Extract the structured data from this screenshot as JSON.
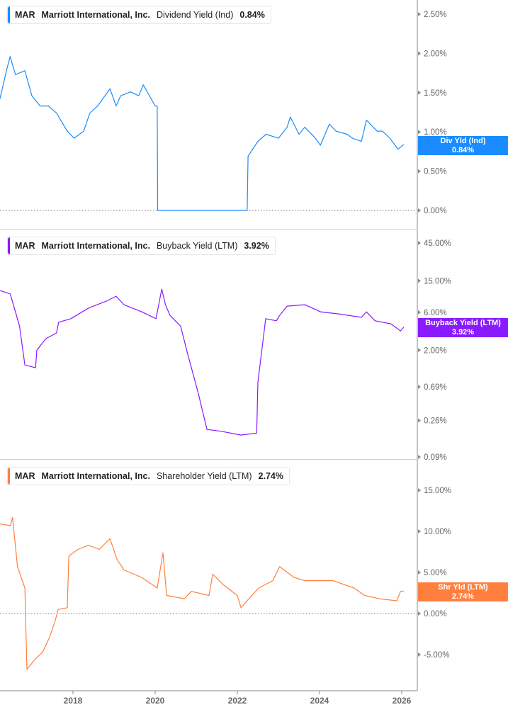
{
  "colors": {
    "div": "#1a8cff",
    "buyback": "#8a1aff",
    "shareholder": "#ff7f3f",
    "axis": "#b0b0b0",
    "text": "#666666"
  },
  "chart_data": [
    {
      "type": "line",
      "ticker": "MAR",
      "company": "Marriott International, Inc.",
      "metric": "Dividend Yield (Ind)",
      "current": "0.84%",
      "tag_label": "Div Yld (Ind)",
      "scale": "linear",
      "ylim": [
        0,
        2.6
      ],
      "yticks": [
        "2.50%",
        "2.00%",
        "1.50%",
        "1.00%",
        "0.50%",
        "0.00%"
      ],
      "ytick_values": [
        2.5,
        2.0,
        1.5,
        1.0,
        0.5,
        0.0
      ],
      "x": [
        2016.22,
        2016.4,
        2016.47,
        2016.6,
        2016.83,
        2017.0,
        2017.2,
        2017.4,
        2017.6,
        2017.86,
        2018.03,
        2018.26,
        2018.41,
        2018.6,
        2018.9,
        2019.05,
        2019.16,
        2019.4,
        2019.6,
        2019.71,
        2020.0,
        2020.05,
        2020.06,
        2022.24,
        2022.26,
        2022.5,
        2022.7,
        2023.0,
        2023.21,
        2023.29,
        2023.5,
        2023.64,
        2023.9,
        2024.02,
        2024.24,
        2024.4,
        2024.67,
        2024.8,
        2025.02,
        2025.14,
        2025.4,
        2025.53,
        2025.71,
        2025.91,
        2026.05
      ],
      "values": [
        1.42,
        1.82,
        1.96,
        1.73,
        1.78,
        1.46,
        1.33,
        1.33,
        1.24,
        1.01,
        0.92,
        1.01,
        1.24,
        1.33,
        1.55,
        1.33,
        1.46,
        1.51,
        1.46,
        1.6,
        1.33,
        1.33,
        0,
        0,
        0.69,
        0.88,
        0.97,
        0.92,
        1.06,
        1.19,
        0.97,
        1.06,
        0.92,
        0.83,
        1.1,
        1.01,
        0.97,
        0.92,
        0.88,
        1.15,
        1.01,
        1.01,
        0.92,
        0.78,
        0.84
      ]
    },
    {
      "type": "line",
      "ticker": "MAR",
      "company": "Marriott International, Inc.",
      "metric": "Buyback Yield (LTM)",
      "current": "3.92%",
      "tag_label": "Buyback Yield (LTM)",
      "scale": "log",
      "ylim": [
        0.09,
        45
      ],
      "yticks": [
        "45.00%",
        "15.00%",
        "6.00%",
        "2.00%",
        "0.69%",
        "0.26%",
        "0.09%"
      ],
      "ytick_values": [
        45,
        15,
        6,
        2,
        0.69,
        0.26,
        0.09
      ],
      "x": [
        2016.22,
        2016.47,
        2016.6,
        2016.7,
        2016.83,
        2017.09,
        2017.12,
        2017.34,
        2017.6,
        2017.65,
        2017.95,
        2018.38,
        2018.81,
        2019.05,
        2019.24,
        2019.67,
        2020.02,
        2020.16,
        2020.25,
        2020.36,
        2020.62,
        2020.79,
        2021.05,
        2021.26,
        2021.6,
        2022.09,
        2022.47,
        2022.5,
        2022.69,
        2022.95,
        2023.03,
        2023.21,
        2023.64,
        2024.02,
        2024.5,
        2025.02,
        2025.14,
        2025.35,
        2025.74,
        2025.97,
        2026.05
      ],
      "values": [
        11.3,
        10.3,
        6.1,
        4.0,
        1.3,
        1.2,
        2.0,
        2.8,
        3.3,
        4.5,
        5.0,
        6.8,
        8.3,
        9.6,
        7.5,
        6.1,
        5.0,
        11.8,
        7.5,
        5.5,
        4.0,
        1.8,
        0.57,
        0.2,
        0.19,
        0.17,
        0.18,
        0.79,
        5.0,
        4.7,
        5.5,
        7.2,
        7.5,
        6.1,
        5.7,
        5.2,
        6.1,
        4.7,
        4.3,
        3.5,
        3.92
      ]
    },
    {
      "type": "line",
      "ticker": "MAR",
      "company": "Marriott International, Inc.",
      "metric": "Shareholder Yield (LTM)",
      "current": "2.74%",
      "tag_label": "Shr Yld (LTM)",
      "scale": "linear",
      "ylim": [
        -7.5,
        16.5
      ],
      "yticks": [
        "15.00%",
        "10.00%",
        "5.00%",
        "0.00%",
        "-5.00%"
      ],
      "ytick_values": [
        15,
        10,
        5,
        0,
        -5
      ],
      "x": [
        2016.22,
        2016.48,
        2016.53,
        2016.65,
        2016.83,
        2016.88,
        2017.09,
        2017.26,
        2017.43,
        2017.57,
        2017.64,
        2017.86,
        2017.9,
        2018.12,
        2018.38,
        2018.64,
        2018.9,
        2019.07,
        2019.24,
        2019.67,
        2020.05,
        2020.19,
        2020.28,
        2020.71,
        2020.88,
        2021.31,
        2021.4,
        2021.66,
        2022.0,
        2022.09,
        2022.35,
        2022.52,
        2022.86,
        2023.03,
        2023.38,
        2023.64,
        2024.33,
        2024.84,
        2025.1,
        2025.45,
        2025.88,
        2025.97,
        2026.05
      ],
      "values": [
        10.9,
        10.7,
        11.7,
        5.7,
        3.1,
        -6.8,
        -5.5,
        -4.7,
        -2.9,
        -0.8,
        0.5,
        0.7,
        7.0,
        7.8,
        8.3,
        7.8,
        9.1,
        6.6,
        5.3,
        4.4,
        3.1,
        7.4,
        2.2,
        1.8,
        2.7,
        2.2,
        4.8,
        3.5,
        2.2,
        0.7,
        2.2,
        3.1,
        4.0,
        5.7,
        4.4,
        4.0,
        4.0,
        3.1,
        2.2,
        1.8,
        1.55,
        2.7,
        2.74
      ]
    }
  ],
  "xaxis": {
    "ticks": [
      "2018",
      "2020",
      "2022",
      "2024",
      "2026"
    ],
    "tick_values": [
      2018,
      2020,
      2022,
      2024,
      2026
    ]
  }
}
